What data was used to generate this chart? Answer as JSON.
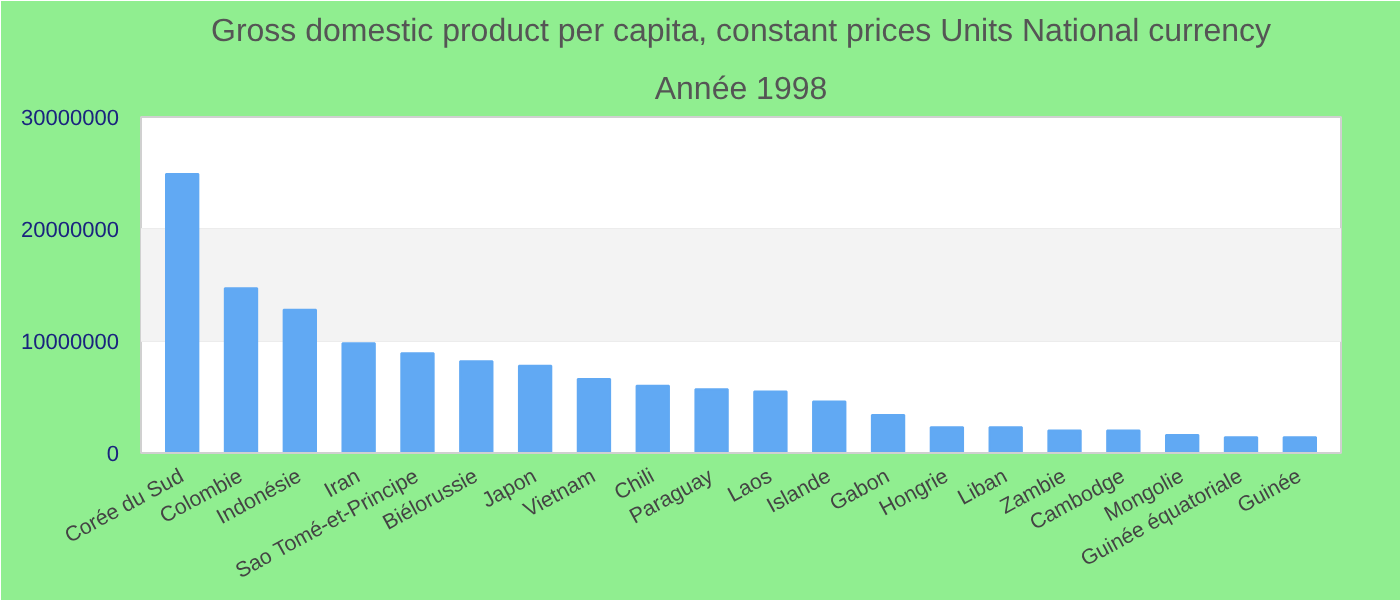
{
  "chart_data": {
    "type": "bar",
    "title": "Gross domestic product per capita, constant prices Units National currency",
    "subtitle": "Année 1998",
    "categories": [
      "Corée du Sud",
      "Colombie",
      "Indonésie",
      "Iran",
      "Sao Tomé-et-Principe",
      "Biélorussie",
      "Japon",
      "Vietnam",
      "Chili",
      "Paraguay",
      "Laos",
      "Islande",
      "Gabon",
      "Hongrie",
      "Liban",
      "Zambie",
      "Cambodge",
      "Mongolie",
      "Guinée équatoriale",
      "Guinée"
    ],
    "values": [
      24900000,
      14700000,
      12800000,
      9800000,
      8900000,
      8200000,
      7800000,
      6600000,
      6000000,
      5700000,
      5500000,
      4600000,
      3400000,
      2300000,
      2300000,
      2000000,
      2000000,
      1600000,
      1400000,
      1400000
    ],
    "color": "#61a9f3",
    "ylim": [
      0,
      30000000
    ],
    "yticks": [
      0,
      10000000,
      20000000,
      30000000
    ],
    "grid": "y",
    "bands": [
      {
        "axis": "y",
        "from": 10000000,
        "to": 20000000,
        "color": "#f3f3f3"
      }
    ]
  }
}
